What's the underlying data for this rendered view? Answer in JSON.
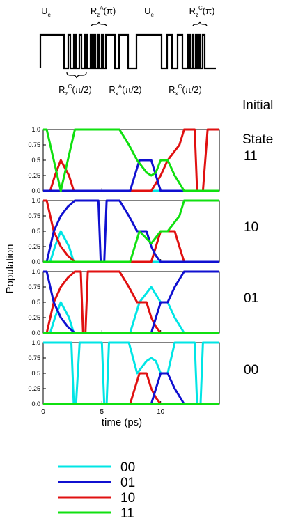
{
  "pulse_labels": {
    "top": [
      {
        "main": "U",
        "sub": "e",
        "sup": "",
        "arg": ""
      },
      {
        "main": "R",
        "sub": "z",
        "sup": "A",
        "arg": "(π)"
      },
      {
        "main": "U",
        "sub": "e",
        "sup": "",
        "arg": ""
      },
      {
        "main": "R",
        "sub": "z",
        "sup": "C",
        "arg": "(π)"
      }
    ],
    "bottom": [
      {
        "main": "R",
        "sub": "z",
        "sup": "C",
        "arg": "(π/2)"
      },
      {
        "main": "R",
        "sub": "x",
        "sup": "A",
        "arg": "(π/2)"
      },
      {
        "main": "R",
        "sub": "x",
        "sup": "C",
        "arg": "(π/2)"
      }
    ]
  },
  "state_heading": [
    "Initial",
    "State"
  ],
  "panel_states": [
    "11",
    "10",
    "01",
    "00"
  ],
  "colors": {
    "00": "#00e5e5",
    "01": "#1010d0",
    "10": "#e01010",
    "11": "#10e010"
  },
  "chart_data": {
    "type": "line",
    "xlabel": "time (ps)",
    "ylabel": "Population",
    "xlim": [
      0,
      15
    ],
    "ylim": [
      0,
      1.05
    ],
    "xticks": [
      "0",
      "5",
      "10"
    ],
    "yticks": [
      "0.0",
      "0.25",
      "0.5",
      "0.75",
      "1.0"
    ],
    "legend": [
      "00",
      "01",
      "10",
      "11"
    ],
    "panels": [
      {
        "initial_state": "11",
        "series": [
          {
            "name": "00",
            "x": [
              0,
              15
            ],
            "y": [
              0,
              0
            ]
          },
          {
            "name": "01",
            "x": [
              0,
              7.4,
              8.2,
              9.2,
              10.0,
              15
            ],
            "y": [
              0,
              0,
              0.5,
              0.5,
              0,
              0
            ]
          },
          {
            "name": "10",
            "x": [
              0,
              0.6,
              1.0,
              1.5,
              2.2,
              2.6,
              9.2,
              10.0,
              10.6,
              11.6,
              12.0,
              12.4,
              12.9,
              13.1,
              13.6,
              14.0,
              15
            ],
            "y": [
              0,
              0,
              0.25,
              0.5,
              0.25,
              0,
              0,
              0.25,
              0.5,
              0.75,
              1.0,
              1.0,
              1.0,
              0,
              0,
              1.0,
              1.0
            ]
          },
          {
            "name": "11",
            "x": [
              0,
              0.3,
              0.9,
              1.5,
              2.1,
              2.7,
              3.3,
              6.0,
              6.5,
              7.3,
              8.0,
              8.8,
              9.2,
              9.6,
              10.0,
              10.6,
              11.2,
              12.0,
              15
            ],
            "y": [
              1.0,
              1.0,
              0.5,
              0,
              0.5,
              1.0,
              1.0,
              1.0,
              1.0,
              0.75,
              0.5,
              0.3,
              0.25,
              0.3,
              0.5,
              0.5,
              0.25,
              0,
              0
            ]
          }
        ]
      },
      {
        "initial_state": "10",
        "series": [
          {
            "name": "00",
            "x": [
              0,
              0.6,
              1.0,
              1.5,
              2.2,
              2.6,
              15
            ],
            "y": [
              0,
              0,
              0.25,
              0.5,
              0.25,
              0,
              0
            ]
          },
          {
            "name": "01",
            "x": [
              0,
              0.3,
              0.9,
              1.5,
              2.1,
              2.7,
              3.3,
              4.7,
              4.9,
              5.2,
              5.4,
              6.0,
              6.5,
              7.3,
              8.0,
              8.8,
              9.2,
              9.6,
              10.0,
              15
            ],
            "y": [
              0,
              0,
              0.5,
              0.75,
              0.9,
              1.0,
              1.0,
              1.0,
              0,
              0,
              1.0,
              1.0,
              1.0,
              0.75,
              0.5,
              0.5,
              0.25,
              0.1,
              0,
              0
            ]
          },
          {
            "name": "10",
            "x": [
              0,
              0.3,
              0.9,
              1.5,
              2.1,
              2.7,
              9.2,
              10.0,
              10.6,
              11.2,
              12.0,
              15
            ],
            "y": [
              1.0,
              1.0,
              0.5,
              0.25,
              0.1,
              0,
              0,
              0.5,
              0.5,
              0.5,
              0,
              0
            ]
          },
          {
            "name": "11",
            "x": [
              0,
              7.4,
              8.2,
              9.2,
              10.0,
              10.6,
              11.6,
              12.0,
              15
            ],
            "y": [
              0,
              0,
              0.5,
              0.3,
              0.5,
              0.5,
              0.75,
              1.0,
              1.0
            ]
          }
        ]
      },
      {
        "initial_state": "01",
        "series": [
          {
            "name": "00",
            "x": [
              0,
              0.6,
              1.0,
              1.5,
              2.2,
              2.6,
              7.4,
              8.2,
              9.2,
              10.0,
              10.6,
              11.2,
              12.0,
              15
            ],
            "y": [
              0,
              0,
              0.25,
              0.5,
              0.25,
              0,
              0,
              0.5,
              0.75,
              0.5,
              0.5,
              0.25,
              0,
              0
            ]
          },
          {
            "name": "01",
            "x": [
              0,
              0.3,
              0.9,
              1.5,
              2.1,
              2.7,
              9.2,
              10.0,
              10.6,
              11.2,
              12.0,
              15
            ],
            "y": [
              1.0,
              1.0,
              0.5,
              0.25,
              0.1,
              0,
              0,
              0.5,
              0.5,
              0.75,
              1.0,
              1.0
            ]
          },
          {
            "name": "10",
            "x": [
              0,
              0.3,
              0.9,
              1.5,
              2.1,
              2.7,
              3.2,
              3.4,
              3.6,
              3.8,
              6.0,
              6.5,
              7.3,
              8.0,
              8.8,
              9.2,
              9.6,
              10.0,
              15
            ],
            "y": [
              0,
              0,
              0.5,
              0.75,
              0.9,
              1.0,
              1.0,
              0,
              0,
              1.0,
              1.0,
              1.0,
              0.75,
              0.5,
              0.5,
              0.25,
              0.1,
              0,
              0
            ]
          },
          {
            "name": "11",
            "x": [
              0,
              15
            ],
            "y": [
              0,
              0
            ]
          }
        ]
      },
      {
        "initial_state": "00",
        "series": [
          {
            "name": "00",
            "x": [
              0,
              2.4,
              2.6,
              2.8,
              3.1,
              3.3,
              5.0,
              5.2,
              5.4,
              5.6,
              7.3,
              8.0,
              8.8,
              9.2,
              9.6,
              10.0,
              10.6,
              11.2,
              12.9,
              13.1,
              13.4,
              13.6,
              15
            ],
            "y": [
              1.0,
              1.0,
              0,
              0,
              1.0,
              1.0,
              1.0,
              0,
              0,
              1.0,
              1.0,
              0.5,
              0.7,
              0.75,
              0.7,
              0.5,
              0.5,
              1.0,
              1.0,
              0,
              0,
              1.0,
              1.0
            ]
          },
          {
            "name": "01",
            "x": [
              0,
              9.2,
              10.0,
              10.6,
              11.2,
              12.0,
              15
            ],
            "y": [
              0,
              0,
              0.5,
              0.5,
              0.25,
              0,
              0
            ]
          },
          {
            "name": "10",
            "x": [
              0,
              7.4,
              8.2,
              8.8,
              9.2,
              9.6,
              10.0,
              15
            ],
            "y": [
              0,
              0,
              0.5,
              0.5,
              0.25,
              0.1,
              0,
              0
            ]
          },
          {
            "name": "11",
            "x": [
              0,
              15
            ],
            "y": [
              0,
              0
            ]
          }
        ]
      }
    ]
  }
}
